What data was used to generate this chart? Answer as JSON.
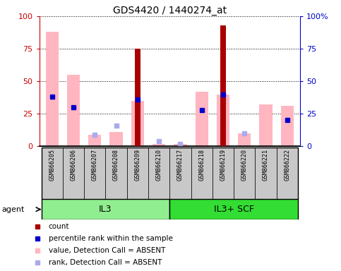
{
  "title": "GDS4420 / 1440274_at",
  "samples": [
    "GSM866205",
    "GSM866206",
    "GSM866207",
    "GSM866208",
    "GSM866209",
    "GSM866210",
    "GSM866217",
    "GSM866218",
    "GSM866219",
    "GSM866220",
    "GSM866221",
    "GSM866222"
  ],
  "groups": [
    {
      "label": "IL3",
      "start": 0,
      "end": 6,
      "color": "#90EE90"
    },
    {
      "label": "IL3+ SCF",
      "start": 6,
      "end": 12,
      "color": "#33DD33"
    }
  ],
  "pink_bars": [
    88,
    55,
    9,
    11,
    35,
    2,
    2,
    42,
    40,
    10,
    32,
    31
  ],
  "red_bars": [
    0,
    0,
    0,
    0,
    75,
    0,
    0,
    0,
    93,
    0,
    0,
    0
  ],
  "blue_squares": [
    38,
    30,
    0,
    0,
    36,
    0,
    0,
    28,
    40,
    0,
    0,
    20
  ],
  "light_blue_squares": [
    0,
    0,
    9,
    16,
    0,
    4,
    2,
    0,
    0,
    10,
    0,
    0
  ],
  "ylim": [
    0,
    100
  ],
  "yticks": [
    0,
    25,
    50,
    75,
    100
  ],
  "left_axis_color": "#CC0000",
  "right_axis_color": "#0000CC",
  "pink_color": "#FFB6C1",
  "red_color": "#AA0000",
  "blue_color": "#0000CC",
  "light_blue_color": "#AAAAEE",
  "label_box_color": "#C8C8C8",
  "legend_items": [
    {
      "color": "#AA0000",
      "marker": "s",
      "label": "count"
    },
    {
      "color": "#0000CC",
      "marker": "s",
      "label": "percentile rank within the sample"
    },
    {
      "color": "#FFB6C1",
      "marker": "s",
      "label": "value, Detection Call = ABSENT"
    },
    {
      "color": "#AAAAEE",
      "marker": "s",
      "label": "rank, Detection Call = ABSENT"
    }
  ],
  "agent_label": "agent"
}
